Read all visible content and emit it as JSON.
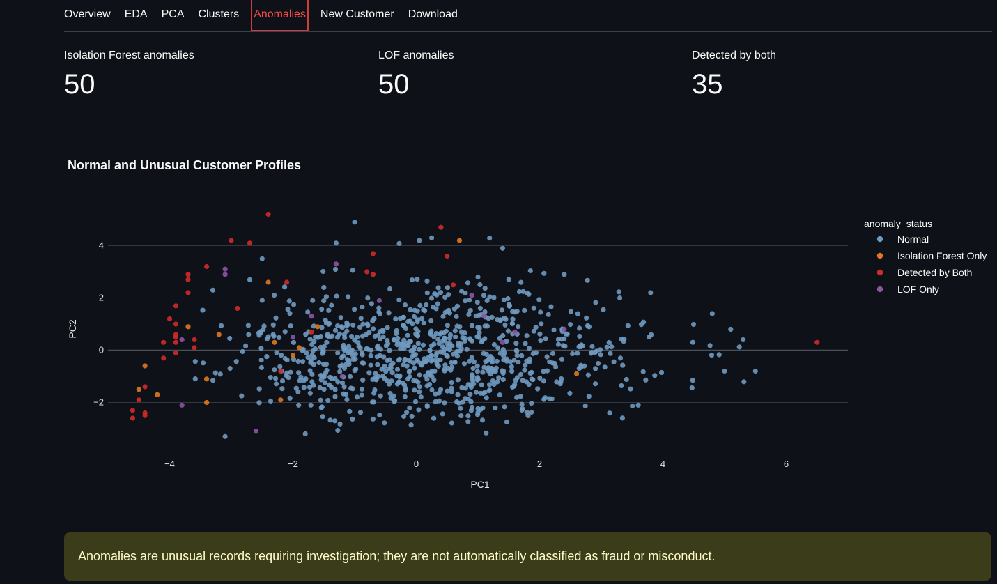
{
  "tabs": [
    {
      "label": "Overview",
      "active": false
    },
    {
      "label": "EDA",
      "active": false
    },
    {
      "label": "PCA",
      "active": false
    },
    {
      "label": "Clusters",
      "active": false
    },
    {
      "label": "Anomalies",
      "active": true
    },
    {
      "label": "New Customer",
      "active": false
    },
    {
      "label": "Download",
      "active": false
    }
  ],
  "metrics": [
    {
      "label": "Isolation Forest anomalies",
      "value": "50"
    },
    {
      "label": "LOF anomalies",
      "value": "50"
    },
    {
      "label": "Detected by both",
      "value": "35"
    }
  ],
  "info_message": "Anomalies are unusual records requiring investigation; they are not automatically classified as fraud or misconduct.",
  "chart_data": {
    "type": "scatter",
    "title": "Normal and Unusual Customer Profiles",
    "xlabel": "PC1",
    "ylabel": "PC2",
    "xlim": [
      -5.0,
      7.0
    ],
    "ylim": [
      -3.8,
      5.4
    ],
    "xticks": [
      -4,
      -2,
      0,
      2,
      4,
      6
    ],
    "yticks": [
      -2,
      0,
      2,
      4
    ],
    "xtick_labels": [
      "−4",
      "−2",
      "0",
      "2",
      "4",
      "6"
    ],
    "ytick_labels": [
      "−2",
      "0",
      "2",
      "4"
    ],
    "grid": "horizontal",
    "legend_title": "anomaly_status",
    "legend_position": "right",
    "series": [
      {
        "name": "Normal",
        "color": "#6f9ac0",
        "generated": {
          "count": 860,
          "seed": 7,
          "center": [
            0.1,
            -0.1
          ],
          "spread": [
            1.7,
            1.3
          ],
          "xrange": [
            -3.6,
            5.5
          ],
          "yrange": [
            -3.4,
            4.9
          ]
        },
        "points": [
          [
            -1.0,
            4.9
          ],
          [
            0.25,
            4.3
          ],
          [
            0.05,
            4.2
          ],
          [
            -1.3,
            4.1
          ],
          [
            1.4,
            3.9
          ],
          [
            -2.5,
            3.5
          ],
          [
            2.4,
            2.9
          ],
          [
            3.8,
            2.2
          ],
          [
            4.8,
            1.4
          ],
          [
            5.1,
            0.8
          ],
          [
            5.3,
            0.4
          ],
          [
            5.5,
            -0.8
          ],
          [
            5.0,
            -0.8
          ],
          [
            3.6,
            -2.1
          ],
          [
            -3.1,
            -3.3
          ],
          [
            -1.8,
            -3.2
          ],
          [
            -2.7,
            2.7
          ],
          [
            -3.3,
            2.3
          ],
          [
            -1.5,
            2.4
          ],
          [
            1.0,
            2.8
          ],
          [
            3.3,
            2.0
          ]
        ]
      },
      {
        "name": "Isolation Forest Only",
        "color": "#e0781f",
        "points": [
          [
            0.7,
            4.2
          ],
          [
            -2.4,
            2.6
          ],
          [
            -3.7,
            0.9
          ],
          [
            -3.2,
            0.6
          ],
          [
            -2.3,
            0.3
          ],
          [
            -4.4,
            -0.6
          ],
          [
            -4.5,
            -1.5
          ],
          [
            -4.2,
            -1.7
          ],
          [
            -3.4,
            -2.0
          ],
          [
            -3.4,
            -1.1
          ],
          [
            -2.2,
            -1.9
          ],
          [
            2.6,
            -0.9
          ],
          [
            -1.9,
            0.1
          ],
          [
            -1.6,
            0.9
          ],
          [
            -2.0,
            -0.2
          ]
        ]
      },
      {
        "name": "Detected by Both",
        "color": "#d12a2a",
        "points": [
          [
            -2.4,
            5.2
          ],
          [
            0.4,
            4.7
          ],
          [
            -3.0,
            4.2
          ],
          [
            -2.7,
            4.1
          ],
          [
            -0.7,
            3.7
          ],
          [
            0.5,
            3.6
          ],
          [
            -3.4,
            3.2
          ],
          [
            -0.7,
            2.9
          ],
          [
            -3.7,
            2.9
          ],
          [
            -3.7,
            2.7
          ],
          [
            -2.1,
            2.6
          ],
          [
            0.6,
            2.5
          ],
          [
            -3.7,
            2.2
          ],
          [
            -3.9,
            1.7
          ],
          [
            -4.0,
            1.2
          ],
          [
            -3.9,
            0.6
          ],
          [
            -3.9,
            0.5
          ],
          [
            -4.1,
            0.3
          ],
          [
            -3.9,
            0.3
          ],
          [
            -3.6,
            0.1
          ],
          [
            -3.9,
            -0.1
          ],
          [
            -4.1,
            -0.3
          ],
          [
            -2.2,
            -0.8
          ],
          [
            -4.4,
            -1.4
          ],
          [
            -4.5,
            -1.9
          ],
          [
            -4.6,
            -2.3
          ],
          [
            -4.4,
            -2.4
          ],
          [
            -4.4,
            -2.5
          ],
          [
            -4.6,
            -2.6
          ],
          [
            6.5,
            0.3
          ],
          [
            -1.7,
            0.7
          ],
          [
            -2.9,
            1.6
          ],
          [
            -0.8,
            3.0
          ],
          [
            -3.9,
            1.0
          ],
          [
            -3.6,
            0.4
          ]
        ]
      },
      {
        "name": "LOF Only",
        "color": "#8e54a6",
        "points": [
          [
            -3.1,
            3.1
          ],
          [
            -3.1,
            2.9
          ],
          [
            -1.3,
            3.3
          ],
          [
            -0.6,
            1.9
          ],
          [
            0.9,
            2.1
          ],
          [
            -1.7,
            1.3
          ],
          [
            1.1,
            1.3
          ],
          [
            1.6,
            0.7
          ],
          [
            2.4,
            0.8
          ],
          [
            1.4,
            0.3
          ],
          [
            -3.8,
            0.4
          ],
          [
            -2.0,
            0.5
          ],
          [
            -3.8,
            -2.1
          ],
          [
            -2.6,
            -3.1
          ],
          [
            -1.2,
            -1.0
          ]
        ]
      }
    ]
  }
}
